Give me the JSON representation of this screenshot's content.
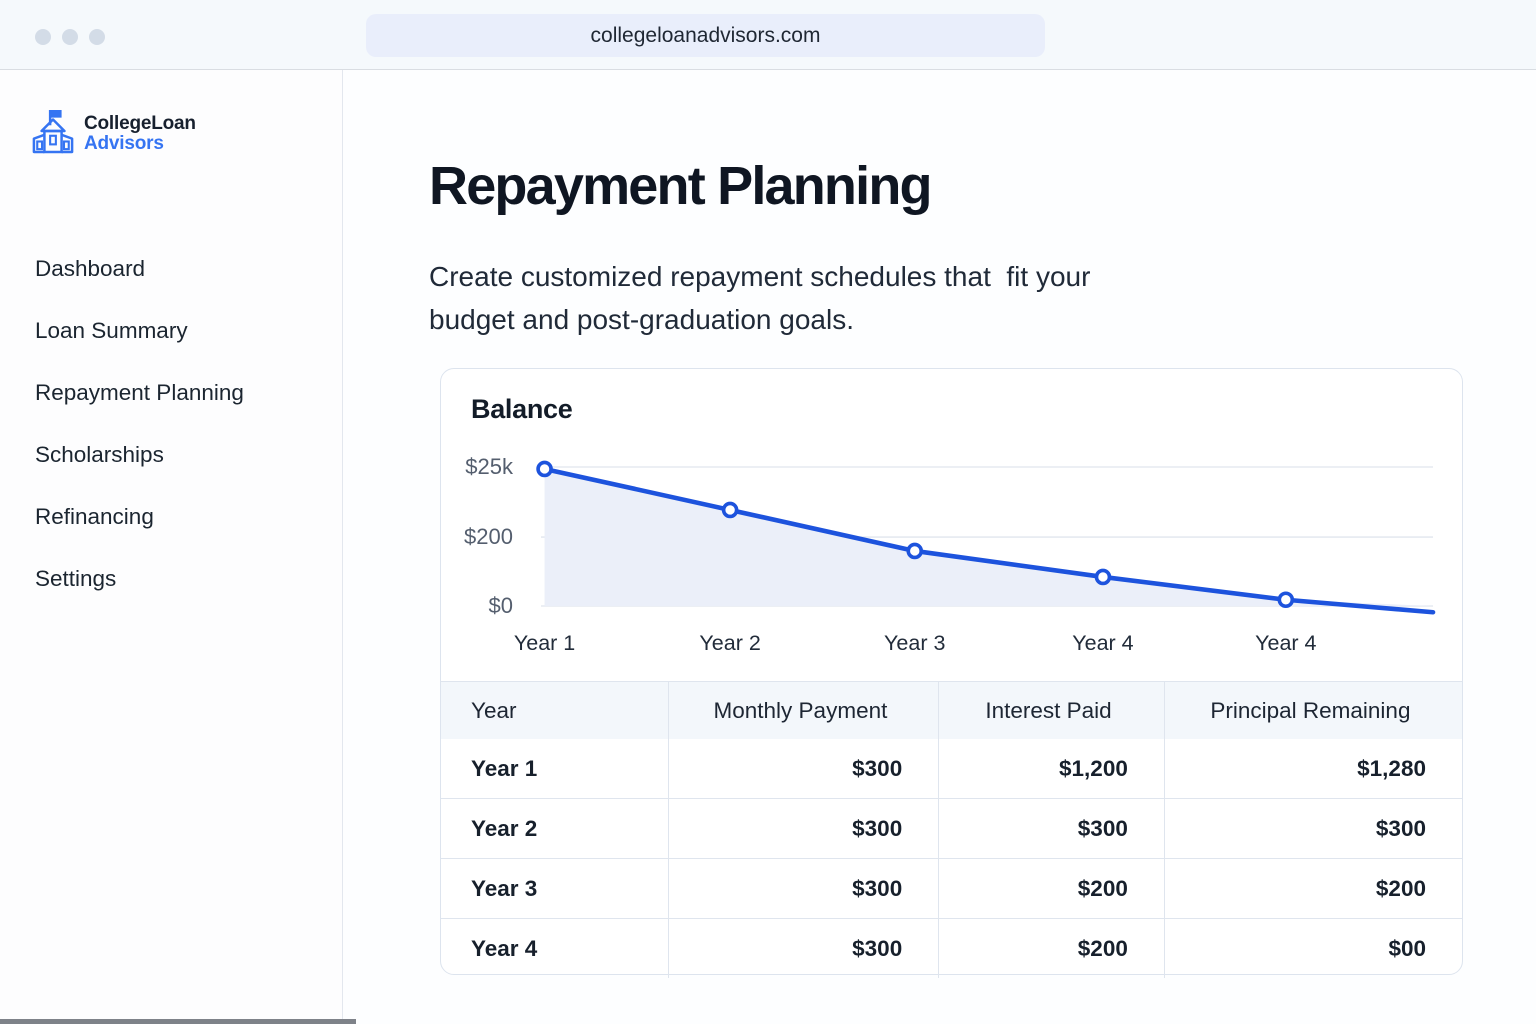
{
  "browser": {
    "url": "collegeloanadvisors.com"
  },
  "sidebar": {
    "logo": {
      "line1": "CollegeLoan",
      "line2": "Advisors"
    },
    "items": [
      {
        "label": "Dashboard"
      },
      {
        "label": "Loan Summary"
      },
      {
        "label": "Repayment Planning"
      },
      {
        "label": "Scholarships"
      },
      {
        "label": "Refinancing"
      },
      {
        "label": "Settings"
      }
    ]
  },
  "main": {
    "title": "Repayment Planning",
    "subtitle": "Create customized repayment schedules that  fit your\nbudget and post-graduation goals."
  },
  "chart_data": {
    "type": "area",
    "title": "Balance",
    "grid": "horizontal-only",
    "legend": "none",
    "y_ticks": [
      {
        "label": "$25k",
        "yf": 0.0
      },
      {
        "label": "$200",
        "yf": 0.504
      },
      {
        "label": "$0",
        "yf": 1.0
      }
    ],
    "x_ticks": [
      {
        "label": "Year 1",
        "xf": 0.004
      },
      {
        "label": "Year 2",
        "xf": 0.212
      },
      {
        "label": "Year 3",
        "xf": 0.419
      },
      {
        "label": "Year 4",
        "xf": 0.63
      },
      {
        "label": "Year 4",
        "xf": 0.835
      }
    ],
    "series": [
      {
        "name": "Balance",
        "points": [
          {
            "xf": 0.004,
            "yf": 0.014,
            "marker": true,
            "approx_value": "$24.8k"
          },
          {
            "xf": 0.212,
            "yf": 0.309,
            "marker": true,
            "approx_value": "$17.3k"
          },
          {
            "xf": 0.419,
            "yf": 0.604,
            "marker": true,
            "approx_value": "$9.9k"
          },
          {
            "xf": 0.63,
            "yf": 0.791,
            "marker": true,
            "approx_value": "$5.2k"
          },
          {
            "xf": 0.835,
            "yf": 0.955,
            "marker": true,
            "approx_value": "$1.1k"
          },
          {
            "xf": 1.0,
            "yf": 1.045,
            "marker": false,
            "approx_value": "-$1.1k"
          }
        ]
      }
    ],
    "line_color": "#1d53dd",
    "marker_fill": "#ffffff",
    "area_fill": "#ebeff9",
    "grid_color": "#e0e5ee"
  },
  "table": {
    "headers": [
      "Year",
      "Monthly Payment",
      "Interest Paid",
      "Principal Remaining"
    ],
    "rows": [
      [
        "Year 1",
        "$300",
        "$1,200",
        "$1,280"
      ],
      [
        "Year 2",
        "$300",
        "$300",
        "$300"
      ],
      [
        "Year 3",
        "$300",
        "$200",
        "$200"
      ],
      [
        "Year 4",
        "$300",
        "$200",
        "$00"
      ]
    ]
  },
  "colors": {
    "accent_blue": "#3574f2",
    "chart_line": "#1d53dd",
    "header_row_bg": "#f3f7fb",
    "url_bar_bg": "#e9eefb"
  }
}
